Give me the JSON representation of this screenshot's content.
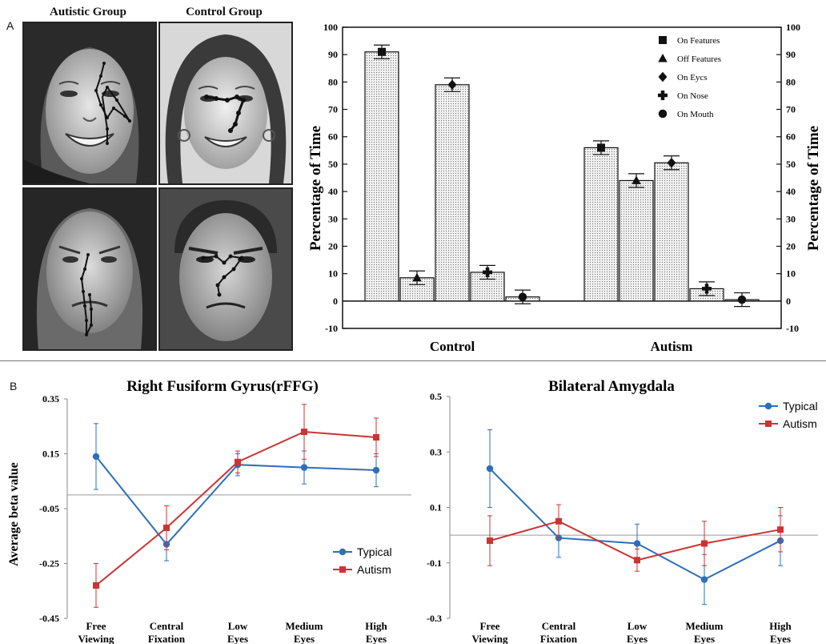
{
  "panel_a": {
    "label": "A",
    "group_labels": [
      "Autistic Group",
      "Control Group"
    ],
    "photo_names": [
      "autistic-face-smiling-photo",
      "control-face-smiling-photo",
      "autistic-face-angry-photo",
      "control-face-frowning-photo"
    ]
  },
  "panel_b": {
    "label": "B"
  },
  "chart_data": [
    {
      "type": "bar",
      "title": "",
      "ylabel": "Percentage of Time",
      "ylabel_right": "Percentage of Time",
      "categories": [
        "Control",
        "Autism"
      ],
      "ylim": [
        -10,
        100
      ],
      "yticks": [
        -10,
        0,
        10,
        20,
        30,
        40,
        50,
        60,
        70,
        80,
        90,
        100
      ],
      "legend_position": "top-right",
      "series": [
        {
          "name": "On Features",
          "marker": "square",
          "values": [
            91,
            56
          ],
          "errors": [
            2.5,
            2.5
          ]
        },
        {
          "name": "Off Features",
          "marker": "triangle",
          "values": [
            8.5,
            44
          ],
          "errors": [
            2.5,
            2.5
          ]
        },
        {
          "name": "On Eycs",
          "marker": "diamond",
          "values": [
            79,
            50.5
          ],
          "errors": [
            2.5,
            2.5
          ]
        },
        {
          "name": "On Nose",
          "marker": "plus",
          "values": [
            10.5,
            4.5
          ],
          "errors": [
            2.5,
            2.5
          ]
        },
        {
          "name": "On Mouth",
          "marker": "circle",
          "values": [
            1.5,
            0.5
          ],
          "errors": [
            2.5,
            2.5
          ]
        }
      ]
    },
    {
      "type": "line",
      "title": "Right Fusiform Gyrus(rFFG)",
      "ylabel": "Average beta value",
      "xlabel": "",
      "categories": [
        [
          "Free",
          "Viewing"
        ],
        [
          "Central",
          "Fixation"
        ],
        [
          "Low",
          "Eyes"
        ],
        [
          "Medium",
          "Eyes"
        ],
        [
          "High",
          "Eyes"
        ]
      ],
      "ylim": [
        -0.45,
        0.35
      ],
      "yticks": [
        0.35,
        0.15,
        -0.05,
        -0.25,
        -0.45
      ],
      "ytick_labels": [
        "0.35",
        "0.15",
        "-0.05",
        "-0.25",
        "-0.45"
      ],
      "baseline": 0,
      "legend_position": "bottom-right",
      "series": [
        {
          "name": "Typical",
          "color": "#2e6fba",
          "marker": "circle",
          "values": [
            0.14,
            -0.18,
            0.11,
            0.1,
            0.09
          ],
          "errors": [
            0.12,
            0.06,
            0.04,
            0.06,
            0.06
          ]
        },
        {
          "name": "Autism",
          "color": "#cc3333",
          "marker": "square",
          "values": [
            -0.33,
            -0.12,
            0.12,
            0.23,
            0.21
          ],
          "errors": [
            0.08,
            0.08,
            0.04,
            0.1,
            0.07
          ]
        }
      ]
    },
    {
      "type": "line",
      "title": "Bilateral Amygdala",
      "ylabel": "",
      "xlabel": "",
      "categories": [
        [
          "Free",
          "Viewing"
        ],
        [
          "Central",
          "Fixation"
        ],
        [
          "Low",
          "Eyes"
        ],
        [
          "Medium",
          "Eyes"
        ],
        [
          "High",
          "Eyes"
        ]
      ],
      "ylim": [
        -0.3,
        0.5
      ],
      "yticks": [
        0.5,
        0.3,
        0.1,
        -0.1,
        -0.3
      ],
      "ytick_labels": [
        "0.5",
        "0.3",
        "0.1",
        "-0.1",
        "-0.3"
      ],
      "baseline": 0,
      "legend_position": "top-right",
      "series": [
        {
          "name": "Typical",
          "color": "#2e6fba",
          "marker": "circle",
          "values": [
            0.24,
            -0.01,
            -0.03,
            -0.16,
            -0.02
          ],
          "errors": [
            0.14,
            0.07,
            0.07,
            0.09,
            0.09
          ]
        },
        {
          "name": "Autism",
          "color": "#cc3333",
          "marker": "square",
          "values": [
            -0.02,
            0.05,
            -0.09,
            -0.03,
            0.02
          ],
          "errors": [
            0.09,
            0.06,
            0.04,
            0.08,
            0.08
          ]
        }
      ]
    }
  ]
}
